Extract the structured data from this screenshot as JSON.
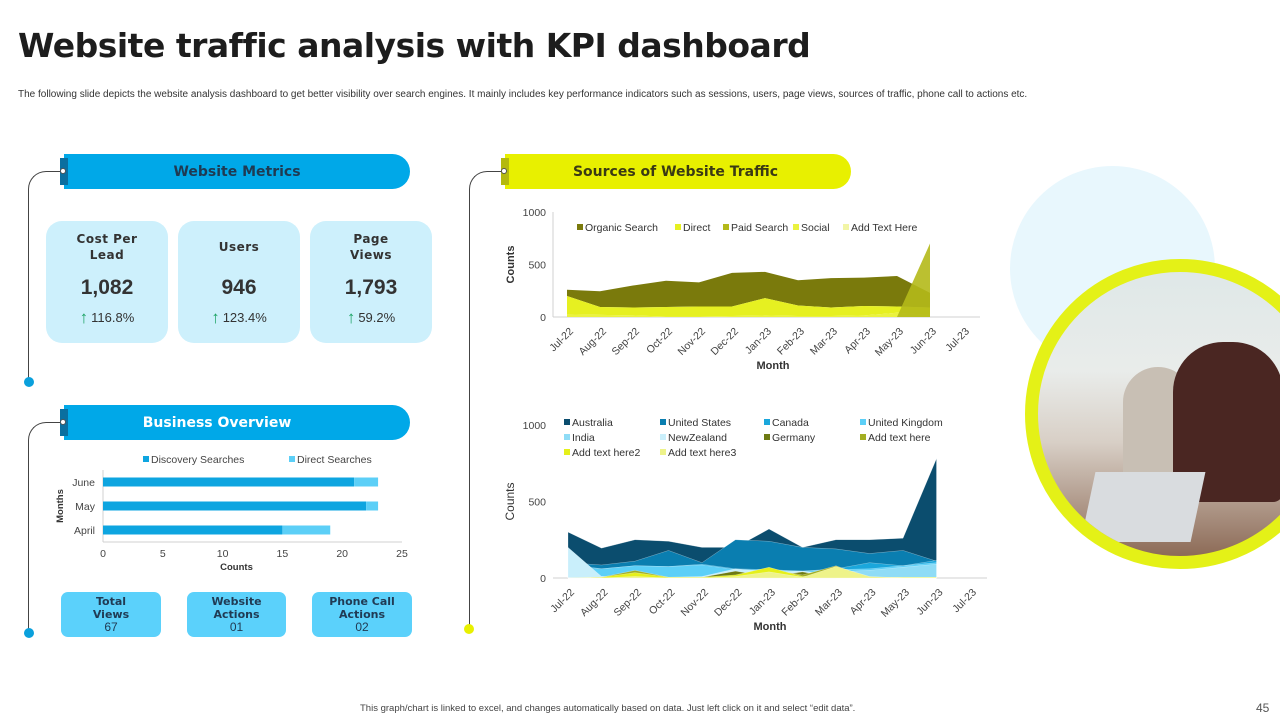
{
  "header": {
    "title": "Website traffic analysis with KPI dashboard",
    "subtitle": "The following slide depicts the website analysis dashboard to get better visibility over search engines. It mainly includes key performance indicators such as sessions, users, page views, sources of traffic, phone call to actions etc."
  },
  "colors": {
    "blue_accent": "#00a8e8",
    "yellow_accent": "#e8f000",
    "kpi_bg": "#cdf0fc",
    "trend_up": "#1aa363"
  },
  "website_metrics": {
    "title": "Website Metrics",
    "cards": [
      {
        "label": "Cost Per Lead",
        "value": "1,082",
        "change": "116.8%",
        "trend_icon": "arrow-up-icon"
      },
      {
        "label": "Users",
        "value": "946",
        "change": "123.4%",
        "trend_icon": "arrow-up-icon"
      },
      {
        "label": "Page Views",
        "value": "1,793",
        "change": "59.2%",
        "trend_icon": "arrow-up-icon"
      }
    ]
  },
  "business_overview": {
    "title": "Business Overview",
    "tiles": [
      {
        "label": "Total Views",
        "value": "67"
      },
      {
        "label": "Website Actions",
        "value": "01"
      },
      {
        "label": "Phone Call Actions",
        "value": "02"
      }
    ]
  },
  "traffic_sources": {
    "title": "Sources of Website Traffic"
  },
  "footer": {
    "note": "This graph/chart is linked to excel, and changes automatically based on data. Just left click on it and select “edit data”.",
    "page_number": "45"
  },
  "chart_data": [
    {
      "id": "business-overview-chart",
      "type": "bar",
      "orientation": "horizontal",
      "stacked": true,
      "title": "",
      "xlabel": "Counts",
      "ylabel": "Months",
      "categories": [
        "April",
        "May",
        "June"
      ],
      "series": [
        {
          "name": "Discovery Searches",
          "color": "#0ea5e0",
          "values": [
            15,
            22,
            21
          ]
        },
        {
          "name": "Direct Searches",
          "color": "#5ccff7",
          "values": [
            4,
            1,
            2
          ]
        }
      ],
      "xlim": [
        0,
        25
      ],
      "xticks": [
        0,
        5,
        10,
        15,
        20,
        25
      ],
      "legend": "top"
    },
    {
      "id": "traffic-sources-chart",
      "type": "area",
      "stacked": true,
      "title": "",
      "xlabel": "Month",
      "ylabel": "Counts",
      "x": [
        "Jul-22",
        "Aug-22",
        "Sep-22",
        "Oct-22",
        "Nov-22",
        "Dec-22",
        "Jan-23",
        "Feb-23",
        "Mar-23",
        "Apr-23",
        "May-23",
        "Jun-23",
        "Jul-23"
      ],
      "ylim": [
        0,
        1000
      ],
      "yticks": [
        0,
        500,
        1000
      ],
      "legend": "top",
      "series": [
        {
          "name": "Organic Search",
          "color": "#7a7a0c",
          "values": [
            60,
            150,
            210,
            250,
            230,
            320,
            250,
            240,
            280,
            270,
            290,
            140,
            null
          ]
        },
        {
          "name": "Direct",
          "color": "#e6f021",
          "values": [
            175,
            75,
            75,
            90,
            95,
            90,
            165,
            100,
            80,
            90,
            60,
            70,
            null
          ]
        },
        {
          "name": "Paid Search",
          "color": "#b4b91a",
          "values": [
            0,
            0,
            0,
            0,
            0,
            0,
            0,
            0,
            0,
            0,
            0,
            700,
            null
          ]
        },
        {
          "name": "Social",
          "color": "#eaf23f",
          "values": [
            25,
            20,
            15,
            5,
            5,
            10,
            15,
            10,
            10,
            15,
            40,
            20,
            null
          ]
        },
        {
          "name": "Add Text Here",
          "color": "#f2f5a6",
          "values": [
            0,
            0,
            0,
            0,
            0,
            0,
            0,
            0,
            0,
            0,
            0,
            0,
            null
          ]
        }
      ]
    },
    {
      "id": "traffic-by-country-chart",
      "type": "area",
      "stacked": false,
      "title": "",
      "xlabel": "Month",
      "ylabel": "Counts",
      "x": [
        "Jul-22",
        "Aug-22",
        "Sep-22",
        "Oct-22",
        "Nov-22",
        "Dec-22",
        "Jan-23",
        "Feb-23",
        "Mar-23",
        "Apr-23",
        "May-23",
        "Jun-23",
        "Jul-23"
      ],
      "ylim": [
        0,
        1000
      ],
      "yticks": [
        0,
        500,
        1000
      ],
      "legend": "top",
      "series": [
        {
          "name": "Australia",
          "color": "#0b4d6e",
          "values": [
            300,
            195,
            250,
            240,
            200,
            200,
            320,
            200,
            250,
            250,
            260,
            780,
            null
          ]
        },
        {
          "name": "United States",
          "color": "#0a7eb0",
          "values": [
            100,
            85,
            110,
            180,
            100,
            250,
            240,
            200,
            190,
            160,
            180,
            110,
            null
          ]
        },
        {
          "name": "Canada",
          "color": "#1aa7dc",
          "values": [
            90,
            60,
            80,
            75,
            90,
            60,
            55,
            45,
            60,
            100,
            80,
            115,
            null
          ]
        },
        {
          "name": "United Kingdom",
          "color": "#5ccff7",
          "values": [
            70,
            60,
            80,
            75,
            85,
            55,
            50,
            45,
            55,
            60,
            80,
            100,
            null
          ]
        },
        {
          "name": "India",
          "color": "#8fdcf6",
          "values": [
            60,
            10,
            5,
            5,
            5,
            50,
            30,
            30,
            40,
            50,
            70,
            90,
            null
          ]
        },
        {
          "name": "NewZealand",
          "color": "#c9effb",
          "values": [
            200,
            10,
            5,
            5,
            10,
            60,
            40,
            45,
            20,
            5,
            5,
            5,
            null
          ]
        },
        {
          "name": "Germany",
          "color": "#6e7a12",
          "values": [
            0,
            5,
            5,
            5,
            5,
            45,
            10,
            40,
            0,
            0,
            0,
            0,
            null
          ]
        },
        {
          "name": "Add text here",
          "color": "#a3ae22",
          "values": [
            0,
            5,
            50,
            5,
            5,
            10,
            60,
            20,
            80,
            0,
            0,
            0,
            null
          ]
        },
        {
          "name": "Add text here2",
          "color": "#e5f01a",
          "values": [
            0,
            5,
            35,
            5,
            5,
            20,
            70,
            10,
            20,
            5,
            5,
            5,
            null
          ]
        },
        {
          "name": "Add text here3",
          "color": "#eef38a",
          "values": [
            0,
            0,
            10,
            0,
            0,
            10,
            40,
            5,
            75,
            10,
            0,
            0,
            null
          ]
        }
      ]
    }
  ]
}
